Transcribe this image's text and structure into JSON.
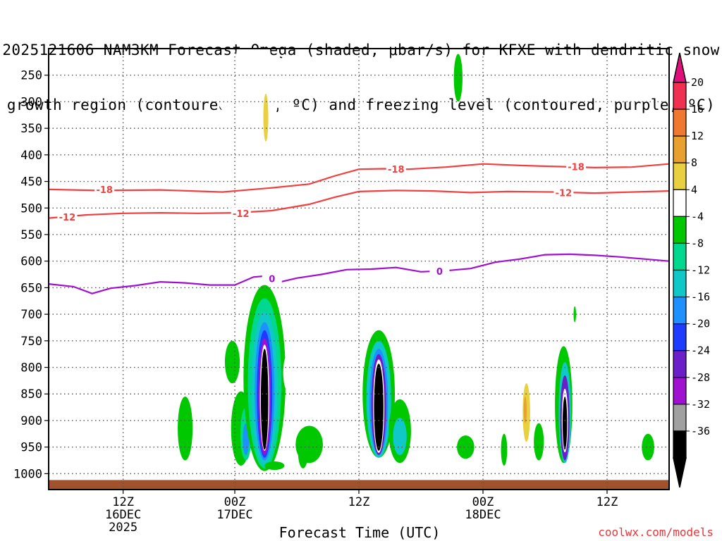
{
  "title": {
    "line1": "2025121606 NAM3KM Forecast Omega (shaded, μbar/s) for KFXE with dendritic snow",
    "line2": "growth region (contoured, red, ºC) and freezing level (contoured, purple, ºC)"
  },
  "credit": "coolwx.com/models",
  "chart_data": {
    "type": "heatmap",
    "title": "2025121606 NAM3KM Forecast Omega (shaded, μbar/s) for KFXE with dendritic snow growth region (contoured, red, ºC) and freezing level (contoured, purple, ºC)",
    "xlabel": "Forecast Time (UTC)",
    "ylabel": "",
    "y_axis": {
      "unit": "hPa",
      "inverted": true,
      "range": [
        1030,
        200
      ],
      "ticks": [
        250,
        300,
        350,
        400,
        450,
        500,
        550,
        600,
        650,
        700,
        750,
        800,
        850,
        900,
        950,
        1000
      ]
    },
    "x_axis": {
      "unit": "forecast hour",
      "range": [
        6,
        56
      ],
      "ticks": [
        {
          "hour": 12,
          "label": "12Z",
          "date": "16DEC",
          "year": "2025"
        },
        {
          "hour": 21,
          "label": "00Z",
          "date": "17DEC",
          "year": ""
        },
        {
          "hour": 31,
          "label": "12Z",
          "date": "",
          "year": ""
        },
        {
          "hour": 41,
          "label": "00Z",
          "date": "18DEC",
          "year": ""
        },
        {
          "hour": 51,
          "label": "12Z",
          "date": "",
          "year": ""
        }
      ]
    },
    "grid": true,
    "colorbar": {
      "unit": "μbar/s",
      "levels": [
        {
          "label": "20",
          "color": "#f03050"
        },
        {
          "label": "16",
          "color": "#f07830"
        },
        {
          "label": "12",
          "color": "#e8a030"
        },
        {
          "label": "8",
          "color": "#e8d040"
        },
        {
          "label": "4",
          "color": "#ffffff"
        },
        {
          "label": "-4",
          "color": "#00c800"
        },
        {
          "label": "-8",
          "color": "#00d890"
        },
        {
          "label": "-12",
          "color": "#10c8c8"
        },
        {
          "label": "-16",
          "color": "#1e90ff"
        },
        {
          "label": "-20",
          "color": "#1e3cff"
        },
        {
          "label": "-24",
          "color": "#6a1fc8"
        },
        {
          "label": "-28",
          "color": "#a010d0"
        },
        {
          "label": "-32",
          "color": "#a0a0a0"
        },
        {
          "label": "-36",
          "color": "#000000"
        }
      ],
      "top_arrow_color": "#e0107a",
      "bottom_arrow_color": "#000000"
    },
    "contours": [
      {
        "name": "-18",
        "color": "#f04040",
        "points": [
          [
            6,
            465
          ],
          [
            10,
            467
          ],
          [
            15,
            466
          ],
          [
            20,
            470
          ],
          [
            24,
            462
          ],
          [
            27,
            455
          ],
          [
            29,
            440
          ],
          [
            31,
            427
          ],
          [
            33,
            426
          ],
          [
            35,
            427
          ],
          [
            38,
            423
          ],
          [
            41,
            417
          ],
          [
            44,
            420
          ],
          [
            47,
            422
          ],
          [
            50,
            424
          ],
          [
            53,
            423
          ],
          [
            56,
            417
          ]
        ],
        "labels": [
          {
            "hour": 10.5,
            "p": 465
          },
          {
            "hour": 34,
            "p": 427
          },
          {
            "hour": 48.5,
            "p": 422
          }
        ]
      },
      {
        "name": "-12",
        "color": "#f04040",
        "points": [
          [
            6,
            519
          ],
          [
            9,
            513
          ],
          [
            12,
            510
          ],
          [
            15,
            509
          ],
          [
            18,
            510
          ],
          [
            21,
            509
          ],
          [
            24,
            505
          ],
          [
            27,
            493
          ],
          [
            29,
            480
          ],
          [
            31,
            469
          ],
          [
            34,
            467
          ],
          [
            37,
            468
          ],
          [
            40,
            471
          ],
          [
            43,
            469
          ],
          [
            47,
            470
          ],
          [
            50,
            472
          ],
          [
            53,
            470
          ],
          [
            56,
            468
          ]
        ],
        "labels": [
          {
            "hour": 7.5,
            "p": 517
          },
          {
            "hour": 21.5,
            "p": 510
          },
          {
            "hour": 47.5,
            "p": 471
          }
        ]
      },
      {
        "name": "0",
        "color": "#a010d0",
        "points": [
          [
            6,
            643
          ],
          [
            8,
            648
          ],
          [
            9.5,
            661
          ],
          [
            11,
            651
          ],
          [
            13,
            646
          ],
          [
            15,
            639
          ],
          [
            17,
            641
          ],
          [
            19,
            645
          ],
          [
            21,
            645
          ],
          [
            22.5,
            630
          ],
          [
            23.5,
            628
          ],
          [
            24.5,
            640
          ],
          [
            26,
            632
          ],
          [
            28,
            625
          ],
          [
            30,
            616
          ],
          [
            32,
            615
          ],
          [
            34,
            612
          ],
          [
            36,
            620
          ],
          [
            38,
            618
          ],
          [
            40,
            614
          ],
          [
            42,
            602
          ],
          [
            44,
            596
          ],
          [
            46,
            588
          ],
          [
            48,
            587
          ],
          [
            50,
            589
          ],
          [
            52,
            592
          ],
          [
            54,
            596
          ],
          [
            56,
            600
          ]
        ],
        "labels": [
          {
            "hour": 24,
            "p": 633
          },
          {
            "hour": 37.5,
            "p": 619
          }
        ]
      }
    ],
    "omega_features": [
      {
        "hour": 6.6,
        "p": 770,
        "dh": 0.8,
        "dp": 40,
        "level": "4",
        "shape": "ellipse"
      },
      {
        "hour": 9,
        "p": 880,
        "dh": 2.7,
        "dp": 30,
        "level": "4",
        "shape": "ellipse"
      },
      {
        "hour": 14.5,
        "p": 955,
        "dh": 0.25,
        "dp": 25,
        "level": "4",
        "shape": "ellipse"
      },
      {
        "hour": 17,
        "p": 915,
        "dh": 0.6,
        "dp": 60,
        "level": "-4",
        "shape": "ellipse"
      },
      {
        "hour": 20.8,
        "p": 790,
        "dh": 0.6,
        "dp": 40,
        "level": "-4",
        "shape": "ellipse"
      },
      {
        "hour": 21,
        "p": 270,
        "dh": 1.6,
        "dp": 60,
        "level": "4",
        "shape": "ellipse"
      },
      {
        "hour": 22.5,
        "p": 320,
        "dh": 1.6,
        "dp": 220,
        "level": "4",
        "shape": "ellipse"
      },
      {
        "hour": 21.6,
        "p": 470,
        "dh": 1.0,
        "dp": 70,
        "level": "4",
        "shape": "ellipse"
      },
      {
        "hour": 22.8,
        "p": 545,
        "dh": 0.7,
        "dp": 60,
        "level": "4",
        "shape": "ellipse"
      },
      {
        "hour": 23.5,
        "p": 330,
        "dh": 0.2,
        "dp": 45,
        "level": "8",
        "shape": "ellipse"
      },
      {
        "hour": 25,
        "p": 300,
        "dh": 0.5,
        "dp": 90,
        "level": "4",
        "shape": "ellipse"
      },
      {
        "hour": 23.5,
        "p": 210,
        "dh": 0.08,
        "dp": 20,
        "level": "4",
        "shape": "ellipse"
      },
      {
        "hour": 21.5,
        "p": 915,
        "dh": 0.8,
        "dp": 70,
        "level": "-4",
        "shape": "ellipse"
      },
      {
        "hour": 21.9,
        "p": 925,
        "dh": 0.45,
        "dp": 50,
        "level": "-8",
        "shape": "ellipse"
      },
      {
        "hour": 21.9,
        "p": 935,
        "dh": 0.25,
        "dp": 30,
        "level": "-16",
        "shape": "ellipse"
      },
      {
        "hour": 23.4,
        "p": 820,
        "dh": 1.7,
        "dp": 175,
        "level": "-4",
        "shape": "ellipse"
      },
      {
        "hour": 23.4,
        "p": 830,
        "dh": 1.35,
        "dp": 160,
        "level": "-8",
        "shape": "ellipse"
      },
      {
        "hour": 23.4,
        "p": 840,
        "dh": 1.05,
        "dp": 145,
        "level": "-12",
        "shape": "ellipse"
      },
      {
        "hour": 23.4,
        "p": 845,
        "dh": 0.8,
        "dp": 130,
        "level": "-16",
        "shape": "ellipse"
      },
      {
        "hour": 23.4,
        "p": 850,
        "dh": 0.62,
        "dp": 120,
        "level": "-20",
        "shape": "ellipse"
      },
      {
        "hour": 23.4,
        "p": 855,
        "dh": 0.5,
        "dp": 110,
        "level": "-28",
        "shape": "ellipse"
      },
      {
        "hour": 23.4,
        "p": 857,
        "dh": 0.38,
        "dp": 100,
        "level": "4",
        "shape": "ellipse"
      },
      {
        "hour": 23.4,
        "p": 860,
        "dh": 0.3,
        "dp": 95,
        "level": "-36",
        "shape": "ellipse"
      },
      {
        "hour": 24.2,
        "p": 985,
        "dh": 0.8,
        "dp": 8,
        "level": "-4",
        "shape": "ellipse"
      },
      {
        "hour": 25.3,
        "p": 810,
        "dh": 0.4,
        "dp": 35,
        "level": "4",
        "shape": "ellipse"
      },
      {
        "hour": 26.5,
        "p": 960,
        "dh": 0.4,
        "dp": 30,
        "level": "-4",
        "shape": "ellipse"
      },
      {
        "hour": 27,
        "p": 945,
        "dh": 1.1,
        "dp": 35,
        "level": "-4",
        "shape": "ellipse"
      },
      {
        "hour": 31.5,
        "p": 955,
        "dh": 0.15,
        "dp": 25,
        "level": "4",
        "shape": "ellipse"
      },
      {
        "hour": 32.6,
        "p": 540,
        "dh": 0.5,
        "dp": 160,
        "level": "4",
        "shape": "ellipse"
      },
      {
        "hour": 32.6,
        "p": 850,
        "dh": 1.3,
        "dp": 120,
        "level": "-4",
        "shape": "ellipse"
      },
      {
        "hour": 32.6,
        "p": 860,
        "dh": 1.0,
        "dp": 110,
        "level": "-12",
        "shape": "ellipse"
      },
      {
        "hour": 32.6,
        "p": 865,
        "dh": 0.75,
        "dp": 100,
        "level": "-16",
        "shape": "ellipse"
      },
      {
        "hour": 32.6,
        "p": 870,
        "dh": 0.6,
        "dp": 95,
        "level": "-24",
        "shape": "ellipse"
      },
      {
        "hour": 32.6,
        "p": 873,
        "dh": 0.45,
        "dp": 88,
        "level": "4",
        "shape": "ellipse"
      },
      {
        "hour": 32.6,
        "p": 875,
        "dh": 0.38,
        "dp": 82,
        "level": "-36",
        "shape": "ellipse"
      },
      {
        "hour": 34.3,
        "p": 920,
        "dh": 0.9,
        "dp": 60,
        "level": "-4",
        "shape": "ellipse"
      },
      {
        "hour": 34.3,
        "p": 930,
        "dh": 0.55,
        "dp": 35,
        "level": "-12",
        "shape": "ellipse"
      },
      {
        "hour": 39.6,
        "p": 950,
        "dh": 0.7,
        "dp": 22,
        "level": "-4",
        "shape": "ellipse"
      },
      {
        "hour": 41.2,
        "p": 810,
        "dh": 0.3,
        "dp": 35,
        "level": "4",
        "shape": "ellipse"
      },
      {
        "hour": 41.8,
        "p": 860,
        "dh": 0.4,
        "dp": 30,
        "level": "4",
        "shape": "ellipse"
      },
      {
        "hour": 42.7,
        "p": 955,
        "dh": 0.25,
        "dp": 30,
        "level": "-4",
        "shape": "ellipse"
      },
      {
        "hour": 44.5,
        "p": 895,
        "dh": 0.5,
        "dp": 80,
        "level": "4",
        "shape": "ellipse"
      },
      {
        "hour": 44.5,
        "p": 885,
        "dh": 0.3,
        "dp": 55,
        "level": "8",
        "shape": "ellipse"
      },
      {
        "hour": 44.4,
        "p": 880,
        "dh": 0.12,
        "dp": 25,
        "level": "12",
        "shape": "ellipse"
      },
      {
        "hour": 45.5,
        "p": 940,
        "dh": 0.4,
        "dp": 35,
        "level": "-4",
        "shape": "ellipse"
      },
      {
        "hour": 46.2,
        "p": 955,
        "dh": 0.25,
        "dp": 20,
        "level": "4",
        "shape": "ellipse"
      },
      {
        "hour": 47.5,
        "p": 870,
        "dh": 0.7,
        "dp": 110,
        "level": "-4",
        "shape": "ellipse"
      },
      {
        "hour": 47.6,
        "p": 885,
        "dh": 0.5,
        "dp": 95,
        "level": "-12",
        "shape": "ellipse"
      },
      {
        "hour": 47.6,
        "p": 895,
        "dh": 0.38,
        "dp": 80,
        "level": "-24",
        "shape": "ellipse"
      },
      {
        "hour": 47.6,
        "p": 900,
        "dh": 0.25,
        "dp": 60,
        "level": "4",
        "shape": "ellipse"
      },
      {
        "hour": 47.6,
        "p": 905,
        "dh": 0.18,
        "dp": 50,
        "level": "-36",
        "shape": "ellipse"
      },
      {
        "hour": 48.6,
        "p": 860,
        "dh": 0.2,
        "dp": 30,
        "level": "4",
        "shape": "ellipse"
      },
      {
        "hour": 48.4,
        "p": 700,
        "dh": 0.1,
        "dp": 15,
        "level": "-4",
        "shape": "ellipse"
      },
      {
        "hour": 39,
        "p": 255,
        "dh": 0.35,
        "dp": 45,
        "level": "-4",
        "shape": "ellipse"
      },
      {
        "hour": 54.3,
        "p": 950,
        "dh": 0.5,
        "dp": 25,
        "level": "-4",
        "shape": "ellipse"
      }
    ],
    "ground": {
      "color": "#a0522d",
      "label": "terrain"
    }
  }
}
